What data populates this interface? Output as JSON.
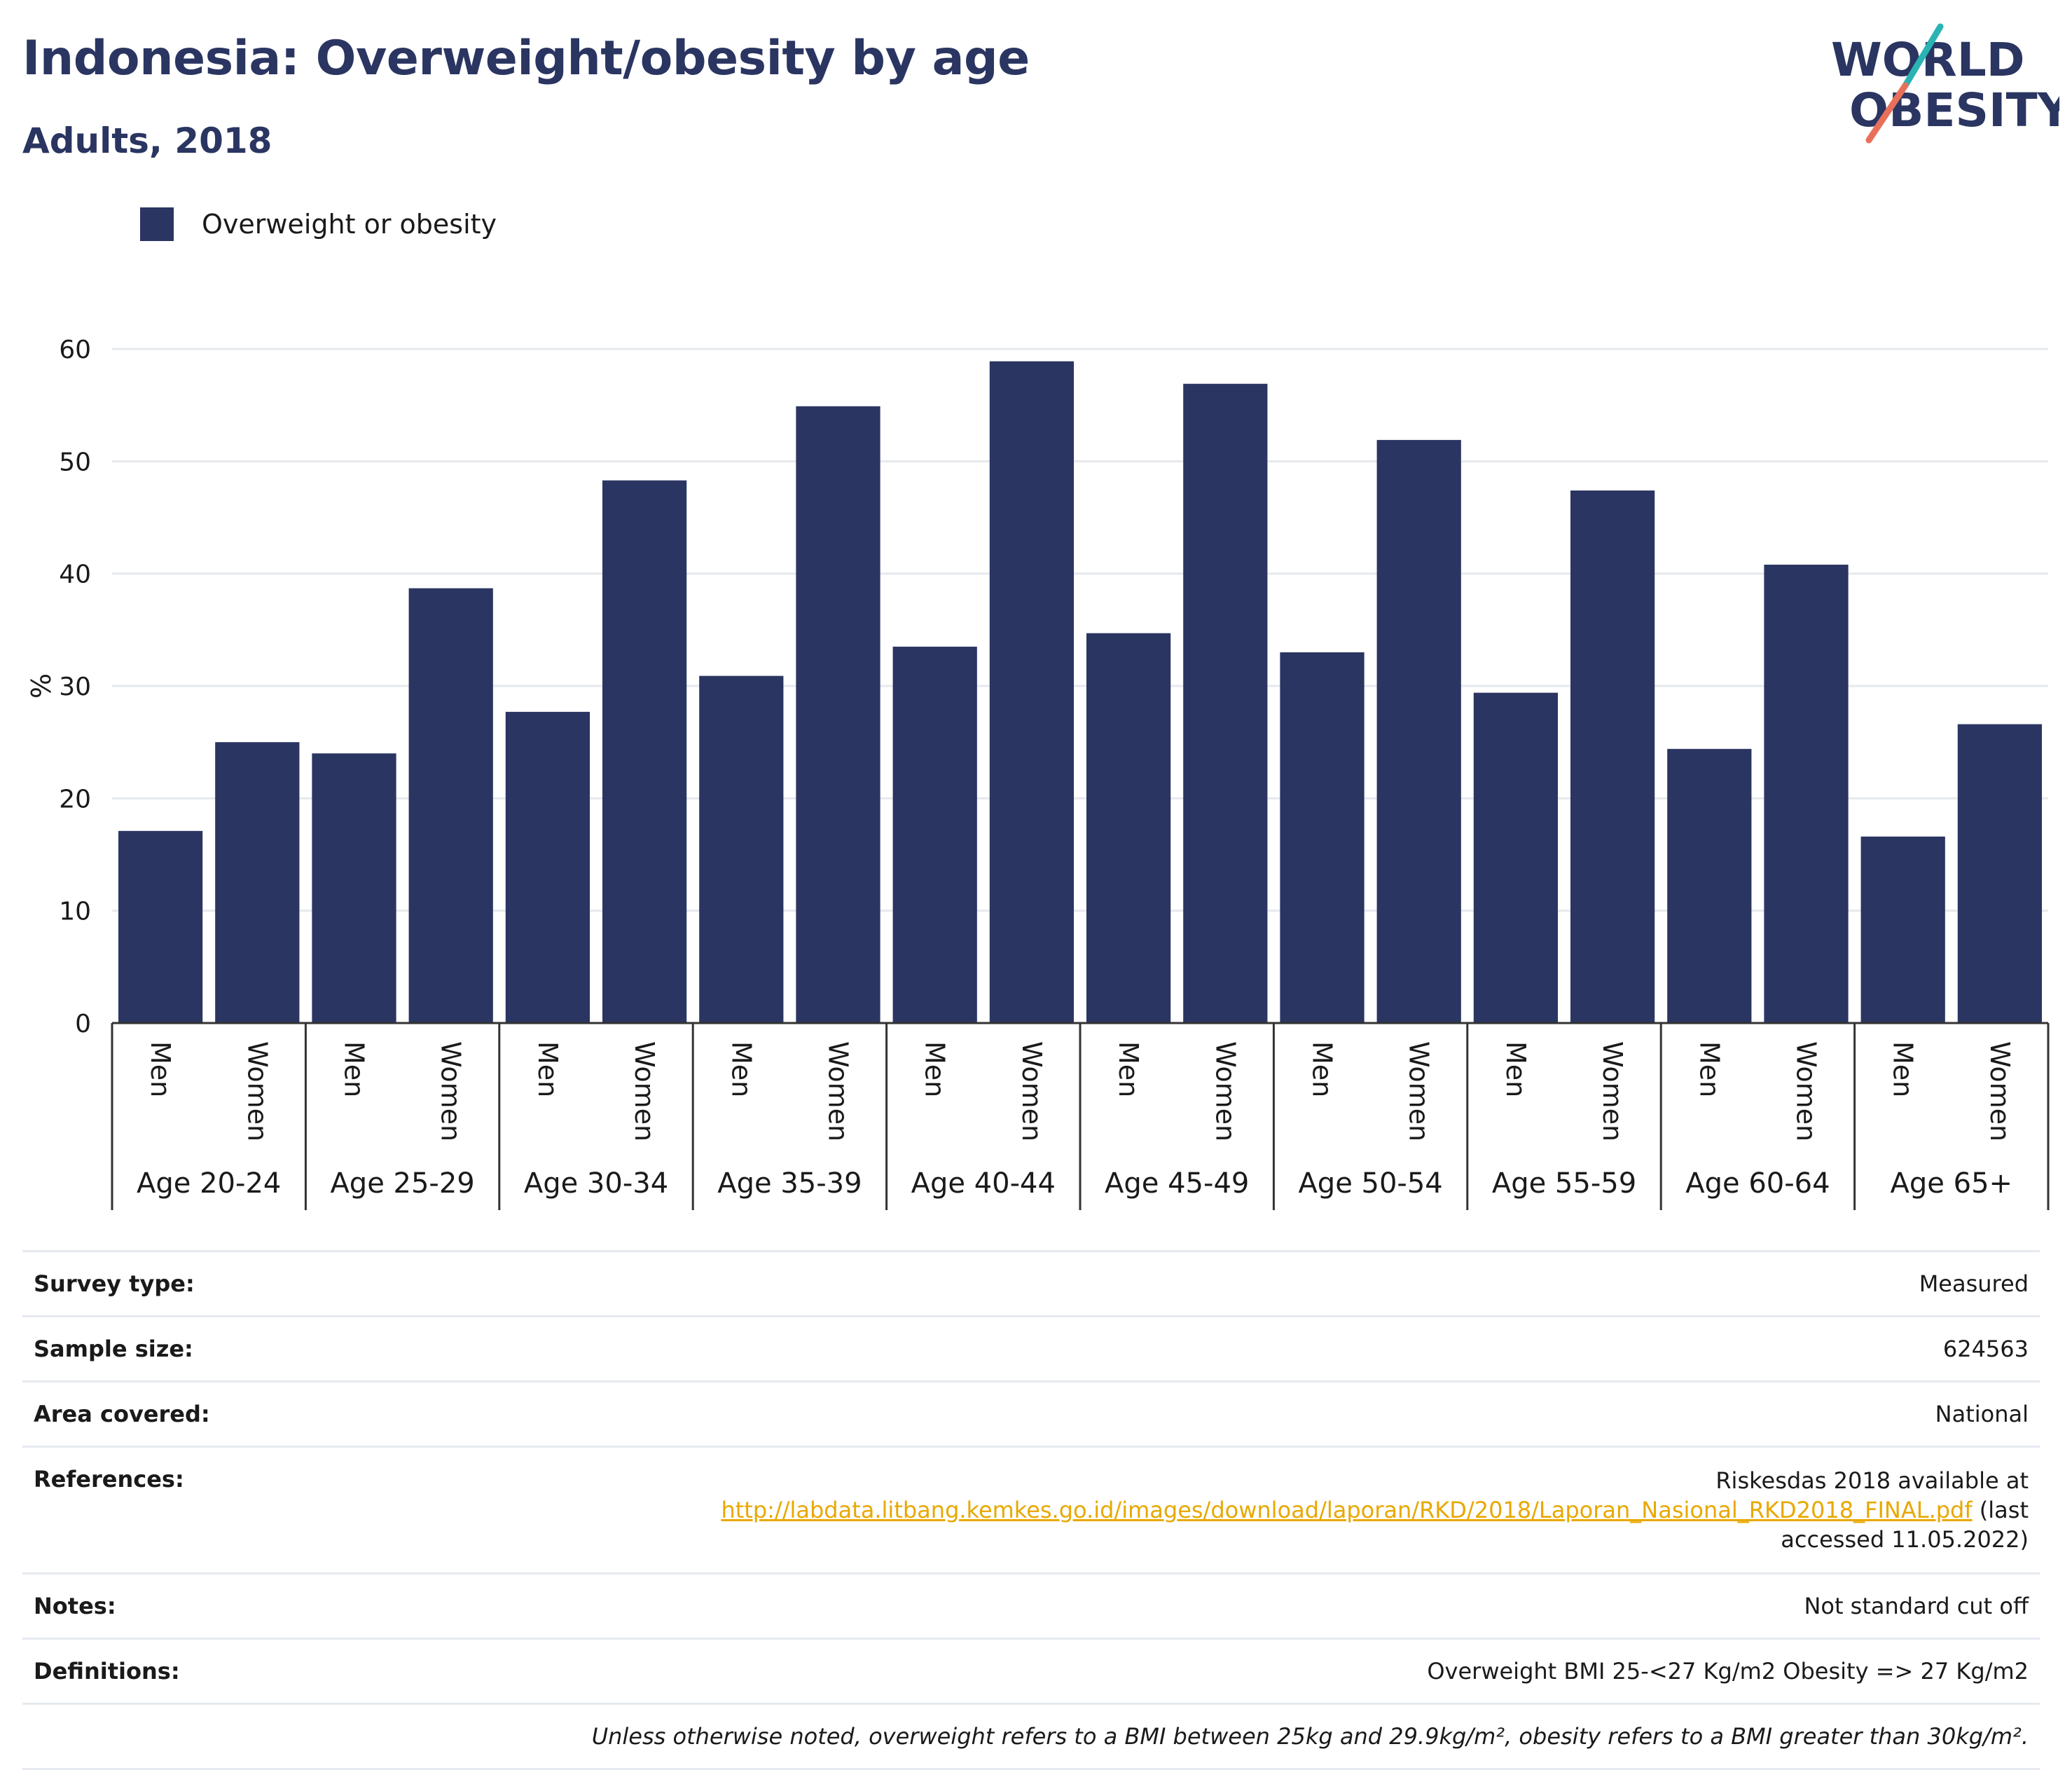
{
  "header": {
    "title": "Indonesia: Overweight/obesity by age",
    "subtitle": "Adults, 2018"
  },
  "logo": {
    "line1": "WORLD",
    "line2": "OBESITY",
    "colors": {
      "text": "#2a3561",
      "slash_top": "#2ab3b3",
      "slash_bottom": "#e8705a"
    }
  },
  "legend": {
    "label": "Overweight or obesity",
    "color": "#2a3561"
  },
  "chart_data": {
    "type": "bar",
    "ylabel": "%",
    "ylim": [
      0,
      60
    ],
    "yticks": [
      0,
      10,
      20,
      30,
      40,
      50,
      60
    ],
    "grid": true,
    "legend_position": "top-left",
    "bar_color": "#2a3561",
    "groups": [
      {
        "label": "Age 20-24",
        "categories": [
          "Men",
          "Women"
        ],
        "values": [
          17.1,
          25.0
        ]
      },
      {
        "label": "Age 25-29",
        "categories": [
          "Men",
          "Women"
        ],
        "values": [
          24.0,
          38.7
        ]
      },
      {
        "label": "Age 30-34",
        "categories": [
          "Men",
          "Women"
        ],
        "values": [
          27.7,
          48.3
        ]
      },
      {
        "label": "Age 35-39",
        "categories": [
          "Men",
          "Women"
        ],
        "values": [
          30.9,
          54.9
        ]
      },
      {
        "label": "Age 40-44",
        "categories": [
          "Men",
          "Women"
        ],
        "values": [
          33.5,
          58.9
        ]
      },
      {
        "label": "Age 45-49",
        "categories": [
          "Men",
          "Women"
        ],
        "values": [
          34.7,
          56.9
        ]
      },
      {
        "label": "Age 50-54",
        "categories": [
          "Men",
          "Women"
        ],
        "values": [
          33.0,
          51.9
        ]
      },
      {
        "label": "Age 55-59",
        "categories": [
          "Men",
          "Women"
        ],
        "values": [
          29.4,
          47.4
        ]
      },
      {
        "label": "Age 60-64",
        "categories": [
          "Men",
          "Women"
        ],
        "values": [
          24.4,
          40.8
        ]
      },
      {
        "label": "Age 65+",
        "categories": [
          "Men",
          "Women"
        ],
        "values": [
          16.6,
          26.6
        ]
      }
    ],
    "series": [
      {
        "name": "Overweight or obesity"
      }
    ]
  },
  "info": {
    "survey_type": {
      "label": "Survey type:",
      "value": "Measured"
    },
    "sample_size": {
      "label": "Sample size:",
      "value": "624563"
    },
    "area_covered": {
      "label": "Area covered:",
      "value": "National"
    },
    "references": {
      "label": "References:",
      "prefix": "Riskesdas 2018 available at",
      "link": "http://labdata.litbang.kemkes.go.id/images/download/laporan/RKD/2018/Laporan_Nasional_RKD2018_FINAL.pdf",
      "suffix": "(last accessed 11.05.2022)"
    },
    "notes": {
      "label": "Notes:",
      "value": "Not standard cut off"
    },
    "definitions": {
      "label": "Definitions:",
      "value": "Overweight BMI 25-<27 Kg/m2 Obesity => 27 Kg/m2"
    },
    "footnote": "Unless otherwise noted, overweight refers to a BMI between 25kg and 29.9kg/m², obesity refers to a BMI greater than 30kg/m²."
  }
}
